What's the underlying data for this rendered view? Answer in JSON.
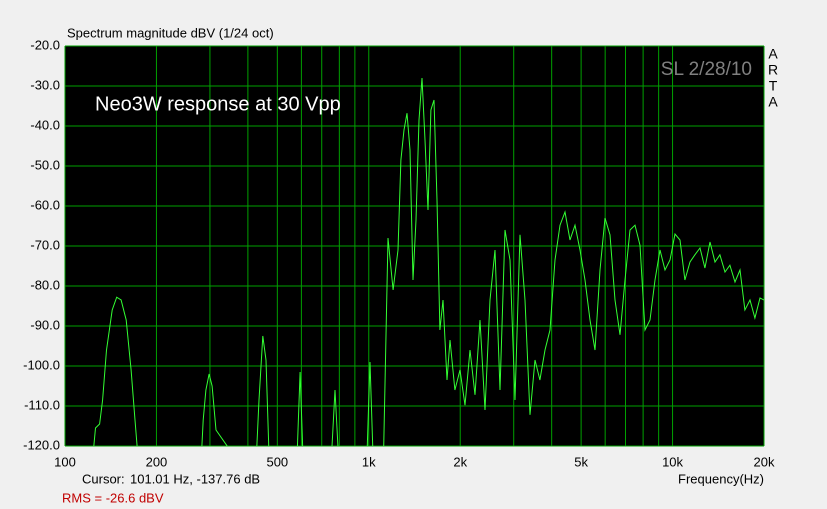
{
  "chart_data": {
    "type": "line",
    "title": "Spectrum magnitude dBV (1/24 oct)",
    "annotation": "Neo3W response at 30 Vpp",
    "signature": "SL 2/28/10",
    "side_label_letters": [
      "A",
      "R",
      "T",
      "A"
    ],
    "x_label": "Frequency(Hz)",
    "cursor_label": "Cursor:",
    "cursor_value": "101.01 Hz, -137.76 dB",
    "rms": "RMS =  -26.6 dBV",
    "xscale": "log",
    "xlim": [
      100,
      20000
    ],
    "ylim": [
      -120,
      -20
    ],
    "grid": true,
    "xticks": [
      100,
      200,
      500,
      {
        "value": 1000,
        "label": "1k"
      },
      {
        "value": 2000,
        "label": "2k"
      },
      {
        "value": 5000,
        "label": "5k"
      },
      {
        "value": 10000,
        "label": "10k"
      },
      {
        "value": 20000,
        "label": "20k"
      }
    ],
    "xgrid_minor": [
      300,
      400,
      600,
      700,
      800,
      900,
      3000,
      4000,
      6000,
      7000,
      8000,
      9000
    ],
    "yticks": [
      {
        "value": -20,
        "label": "-20.0"
      },
      {
        "value": -30,
        "label": "-30.0"
      },
      {
        "value": -40,
        "label": "-40.0"
      },
      {
        "value": -50,
        "label": "-50.0"
      },
      {
        "value": -60,
        "label": "-60.0"
      },
      {
        "value": -70,
        "label": "-70.0"
      },
      {
        "value": -80,
        "label": "-80.0"
      },
      {
        "value": -90,
        "label": "-90.0"
      },
      {
        "value": -100,
        "label": "-100.0"
      },
      {
        "value": -110,
        "label": "-110.0"
      },
      {
        "value": -120,
        "label": "-120.0"
      }
    ],
    "series": [
      {
        "color": "#33ff33",
        "x": [
          121,
          126,
          130,
          133,
          137,
          143,
          148,
          153,
          159,
          165,
          170,
          177,
          278,
          285,
          291,
          298,
          305,
          314,
          422,
          435,
          448,
          459,
          473,
          576,
          594,
          612,
          745,
          774,
          804,
          979,
          1009,
          1040,
          1113,
          1157,
          1202,
          1248,
          1276,
          1306,
          1336,
          1367,
          1398,
          1430,
          1463,
          1497,
          1531,
          1566,
          1602,
          1639,
          1677,
          1715,
          1755,
          1809,
          1851,
          1921,
          1996,
          2073,
          2154,
          2237,
          2323,
          2413,
          2506,
          2603,
          2704,
          2808,
          2916,
          3029,
          3146,
          3268,
          3394,
          3525,
          3660,
          3802,
          3949,
          4102,
          4260,
          4424,
          4595,
          4772,
          4957,
          5148,
          5347,
          5554,
          5768,
          5991,
          6223,
          6463,
          6713,
          6972,
          7241,
          7521,
          7812,
          8113,
          8427,
          8753,
          9090,
          9441,
          9806,
          10185,
          10578,
          10985,
          11410,
          11850,
          12310,
          12780,
          13280,
          13790,
          14320,
          14880,
          15450,
          16050,
          16670,
          17310,
          17980,
          18670,
          19400,
          20000
        ],
        "values": [
          -130,
          -115.5,
          -114.5,
          -108.5,
          -96,
          -86,
          -82.8,
          -83.5,
          -88.5,
          -101,
          -113.5,
          -130,
          -130,
          -113.5,
          -106,
          -102,
          -105,
          -116,
          -130,
          -108.5,
          -92.5,
          -98.5,
          -130,
          -130,
          -101.5,
          -130,
          -130,
          -106,
          -130,
          -130,
          -99,
          -130,
          -130,
          -68,
          -81,
          -71,
          -48.5,
          -41,
          -36.8,
          -46,
          -78.5,
          -63.5,
          -38.5,
          -28,
          -43.5,
          -61,
          -36,
          -33.5,
          -58.5,
          -91,
          -83.5,
          -103.5,
          -93.5,
          -106,
          -101,
          -109.8,
          -96,
          -107.2,
          -88.5,
          -111,
          -83.5,
          -71,
          -106,
          -66,
          -73.5,
          -108.5,
          -67.2,
          -83.5,
          -112.2,
          -98.5,
          -103.5,
          -96,
          -91,
          -73.5,
          -64.8,
          -61.5,
          -68.5,
          -64.8,
          -71,
          -78.5,
          -88.5,
          -96,
          -76,
          -63,
          -67.2,
          -83.5,
          -92.2,
          -78.5,
          -66,
          -64.8,
          -69.8,
          -91,
          -88.5,
          -78.5,
          -71,
          -76,
          -73.5,
          -67,
          -68.5,
          -78.5,
          -74,
          -72.2,
          -70.5,
          -75.5,
          -69,
          -74,
          -72.2,
          -76.5,
          -74.8,
          -79,
          -76,
          -86,
          -83.5,
          -88,
          -83,
          -83.5
        ]
      }
    ]
  }
}
